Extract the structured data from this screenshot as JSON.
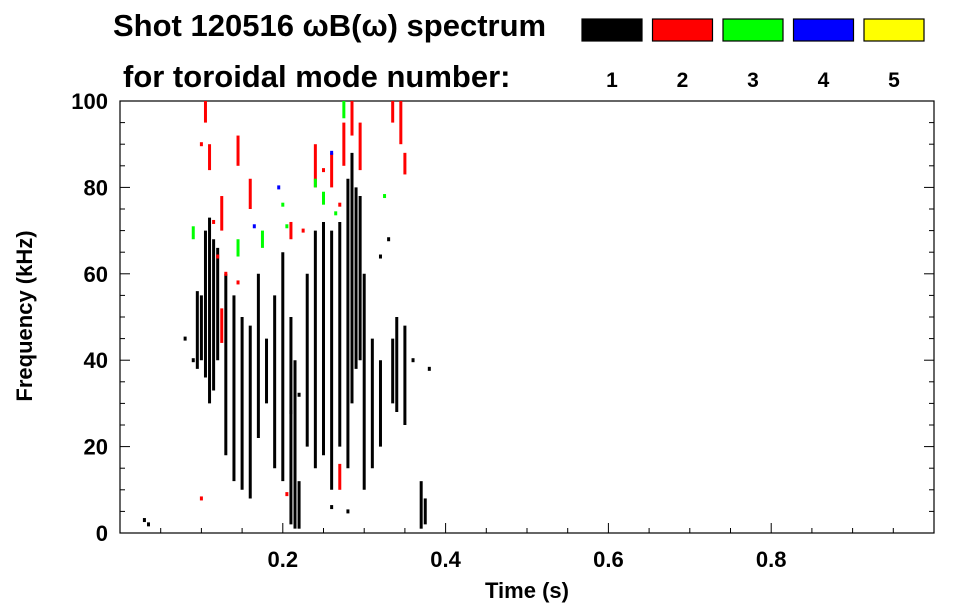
{
  "chart_data": {
    "type": "scatter",
    "title_line1": "Shot 120516 ωB(ω) spectrum",
    "title_line2": "for toroidal mode number:",
    "xlabel": "Time (s)",
    "ylabel": "Frequency (kHz)",
    "xlim": [
      0.0,
      1.0
    ],
    "ylim": [
      0,
      100
    ],
    "x_ticks": [
      0.2,
      0.4,
      0.6,
      0.8
    ],
    "x_tick_labels": [
      "0.2",
      "0.4",
      "0.6",
      "0.8"
    ],
    "y_ticks": [
      0,
      20,
      40,
      60,
      80,
      100
    ],
    "y_tick_labels": [
      "0",
      "20",
      "40",
      "60",
      "80",
      "100"
    ],
    "grid": false,
    "legend_position": "top-right",
    "legend": [
      {
        "label": "1",
        "color": "#000000"
      },
      {
        "label": "2",
        "color": "#ff0000"
      },
      {
        "label": "3",
        "color": "#00ff00"
      },
      {
        "label": "4",
        "color": "#0000ff"
      },
      {
        "label": "5",
        "color": "#ffff00"
      }
    ],
    "series": [
      {
        "name": "1",
        "color": "#000000",
        "segments": [
          {
            "t": 0.095,
            "f0": 38,
            "f1": 56
          },
          {
            "t": 0.1,
            "f0": 40,
            "f1": 55
          },
          {
            "t": 0.105,
            "f0": 36,
            "f1": 70
          },
          {
            "t": 0.11,
            "f0": 30,
            "f1": 73
          },
          {
            "t": 0.115,
            "f0": 33,
            "f1": 68
          },
          {
            "t": 0.12,
            "f0": 40,
            "f1": 66
          },
          {
            "t": 0.13,
            "f0": 18,
            "f1": 60
          },
          {
            "t": 0.14,
            "f0": 12,
            "f1": 55
          },
          {
            "t": 0.15,
            "f0": 10,
            "f1": 50
          },
          {
            "t": 0.16,
            "f0": 8,
            "f1": 48
          },
          {
            "t": 0.17,
            "f0": 22,
            "f1": 60
          },
          {
            "t": 0.18,
            "f0": 30,
            "f1": 45
          },
          {
            "t": 0.19,
            "f0": 15,
            "f1": 55
          },
          {
            "t": 0.2,
            "f0": 12,
            "f1": 65
          },
          {
            "t": 0.21,
            "f0": 2,
            "f1": 50
          },
          {
            "t": 0.215,
            "f0": 1,
            "f1": 40
          },
          {
            "t": 0.22,
            "f0": 1,
            "f1": 12
          },
          {
            "t": 0.23,
            "f0": 20,
            "f1": 60
          },
          {
            "t": 0.24,
            "f0": 15,
            "f1": 70
          },
          {
            "t": 0.25,
            "f0": 18,
            "f1": 72
          },
          {
            "t": 0.26,
            "f0": 10,
            "f1": 70
          },
          {
            "t": 0.27,
            "f0": 20,
            "f1": 72
          },
          {
            "t": 0.28,
            "f0": 15,
            "f1": 82
          },
          {
            "t": 0.285,
            "f0": 30,
            "f1": 88
          },
          {
            "t": 0.29,
            "f0": 38,
            "f1": 80
          },
          {
            "t": 0.295,
            "f0": 40,
            "f1": 78
          },
          {
            "t": 0.3,
            "f0": 10,
            "f1": 60
          },
          {
            "t": 0.31,
            "f0": 15,
            "f1": 45
          },
          {
            "t": 0.32,
            "f0": 20,
            "f1": 40
          },
          {
            "t": 0.335,
            "f0": 30,
            "f1": 45
          },
          {
            "t": 0.34,
            "f0": 28,
            "f1": 50
          },
          {
            "t": 0.35,
            "f0": 25,
            "f1": 48
          },
          {
            "t": 0.37,
            "f0": 1,
            "f1": 12
          },
          {
            "t": 0.375,
            "f0": 2,
            "f1": 8
          }
        ],
        "points": [
          [
            0.03,
            3
          ],
          [
            0.035,
            2
          ],
          [
            0.08,
            45
          ],
          [
            0.09,
            40
          ],
          [
            0.21,
            28
          ],
          [
            0.22,
            32
          ],
          [
            0.32,
            64
          ],
          [
            0.33,
            68
          ],
          [
            0.36,
            40
          ],
          [
            0.38,
            38
          ],
          [
            0.26,
            6
          ],
          [
            0.28,
            5
          ]
        ]
      },
      {
        "name": "2",
        "color": "#ff0000",
        "segments": [
          {
            "t": 0.105,
            "f0": 95,
            "f1": 100
          },
          {
            "t": 0.11,
            "f0": 84,
            "f1": 90
          },
          {
            "t": 0.125,
            "f0": 70,
            "f1": 78
          },
          {
            "t": 0.145,
            "f0": 85,
            "f1": 92
          },
          {
            "t": 0.16,
            "f0": 75,
            "f1": 82
          },
          {
            "t": 0.21,
            "f0": 68,
            "f1": 72
          },
          {
            "t": 0.24,
            "f0": 80,
            "f1": 90
          },
          {
            "t": 0.26,
            "f0": 80,
            "f1": 88
          },
          {
            "t": 0.275,
            "f0": 85,
            "f1": 95
          },
          {
            "t": 0.285,
            "f0": 92,
            "f1": 100
          },
          {
            "t": 0.295,
            "f0": 84,
            "f1": 95
          },
          {
            "t": 0.335,
            "f0": 95,
            "f1": 100
          },
          {
            "t": 0.345,
            "f0": 90,
            "f1": 100
          },
          {
            "t": 0.35,
            "f0": 83,
            "f1": 88
          },
          {
            "t": 0.27,
            "f0": 10,
            "f1": 16
          },
          {
            "t": 0.125,
            "f0": 44,
            "f1": 52
          }
        ],
        "points": [
          [
            0.1,
            90
          ],
          [
            0.115,
            72
          ],
          [
            0.12,
            64
          ],
          [
            0.13,
            60
          ],
          [
            0.145,
            58
          ],
          [
            0.225,
            70
          ],
          [
            0.25,
            84
          ],
          [
            0.27,
            76
          ],
          [
            0.1,
            8
          ],
          [
            0.205,
            9
          ]
        ]
      },
      {
        "name": "3",
        "color": "#00ff00",
        "segments": [
          {
            "t": 0.09,
            "f0": 68,
            "f1": 71
          },
          {
            "t": 0.145,
            "f0": 64,
            "f1": 68
          },
          {
            "t": 0.175,
            "f0": 66,
            "f1": 70
          },
          {
            "t": 0.25,
            "f0": 76,
            "f1": 79
          },
          {
            "t": 0.275,
            "f0": 96,
            "f1": 100
          },
          {
            "t": 0.24,
            "f0": 80,
            "f1": 82
          }
        ],
        "points": [
          [
            0.2,
            76
          ],
          [
            0.205,
            71
          ],
          [
            0.265,
            74
          ],
          [
            0.325,
            78
          ]
        ]
      },
      {
        "name": "4",
        "color": "#0000ff",
        "segments": [],
        "points": [
          [
            0.165,
            71
          ],
          [
            0.195,
            80
          ],
          [
            0.26,
            88
          ]
        ]
      }
    ]
  }
}
